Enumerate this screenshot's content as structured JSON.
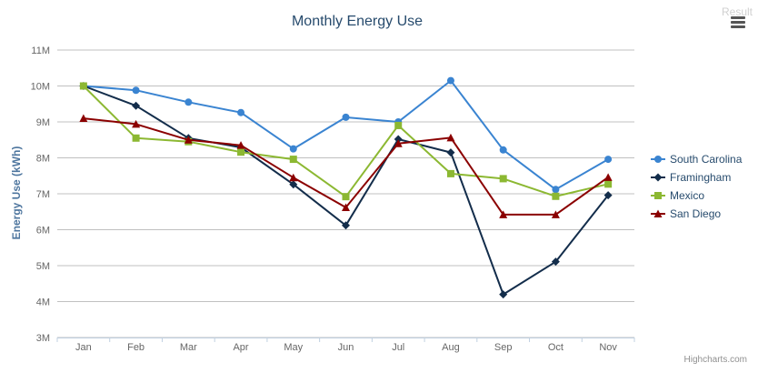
{
  "header": {
    "result_label": "Result",
    "menu_icon": "hamburger-menu-icon"
  },
  "credits": "Highcharts.com",
  "chart_data": {
    "type": "line",
    "title": "Monthly Energy Use",
    "ylabel": "Energy Use (kWh)",
    "xlabel": "",
    "categories": [
      "Jan",
      "Feb",
      "Mar",
      "Apr",
      "May",
      "Jun",
      "Jul",
      "Aug",
      "Sep",
      "Oct",
      "Nov"
    ],
    "y_ticks": [
      "3M",
      "4M",
      "5M",
      "6M",
      "7M",
      "8M",
      "9M",
      "10M",
      "11M"
    ],
    "ylim": [
      3000000,
      11000000
    ],
    "grid": true,
    "legend_position": "right",
    "series": [
      {
        "name": "South Carolina",
        "color": "#3a84d1",
        "marker": "circle",
        "values": [
          10000000,
          9880000,
          9550000,
          9260000,
          8250000,
          9130000,
          9000000,
          10150000,
          8220000,
          7120000,
          7960000
        ]
      },
      {
        "name": "Framingham",
        "color": "#132d4b",
        "marker": "diamond",
        "values": [
          10000000,
          9450000,
          8550000,
          8290000,
          7260000,
          6120000,
          8520000,
          8150000,
          4200000,
          5110000,
          6960000
        ]
      },
      {
        "name": "Mexico",
        "color": "#8cb832",
        "marker": "square",
        "values": [
          10000000,
          8550000,
          8450000,
          8160000,
          7960000,
          6920000,
          8900000,
          7560000,
          7420000,
          6930000,
          7270000
        ]
      },
      {
        "name": "San Diego",
        "color": "#8b0000",
        "marker": "triangle",
        "values": [
          9100000,
          8940000,
          8500000,
          8350000,
          7450000,
          6620000,
          8400000,
          8560000,
          6420000,
          6420000,
          7460000
        ]
      }
    ]
  }
}
